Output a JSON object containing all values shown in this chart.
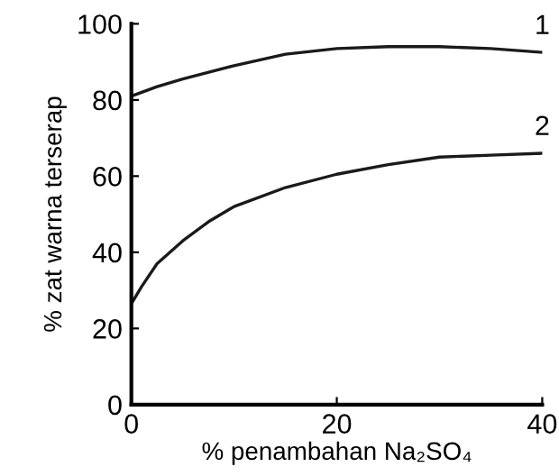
{
  "chart_data": {
    "type": "line",
    "xlabel": "% penambahan Na₂SO₄",
    "ylabel": "% zat warna terserap",
    "xlim": [
      0,
      40
    ],
    "ylim": [
      0,
      100
    ],
    "xticks": [
      0,
      20,
      40
    ],
    "yticks": [
      0,
      20,
      40,
      60,
      80,
      100
    ],
    "grid": false,
    "legend": false,
    "marker": "none",
    "line_style": "solid",
    "series": [
      {
        "name": "1",
        "color": "#1a1a1a",
        "x": [
          0,
          2.5,
          5,
          10,
          15,
          20,
          25,
          30,
          35,
          40
        ],
        "values": [
          81,
          83.5,
          85.5,
          89,
          92,
          93.5,
          94,
          94,
          93.5,
          92.5
        ]
      },
      {
        "name": "2",
        "color": "#1a1a1a",
        "x": [
          0,
          1,
          2.5,
          5,
          7.5,
          10,
          15,
          20,
          25,
          30,
          35,
          40
        ],
        "values": [
          26.5,
          31,
          37,
          43,
          48,
          52,
          57,
          60.5,
          63,
          65,
          65.5,
          66
        ]
      }
    ]
  }
}
